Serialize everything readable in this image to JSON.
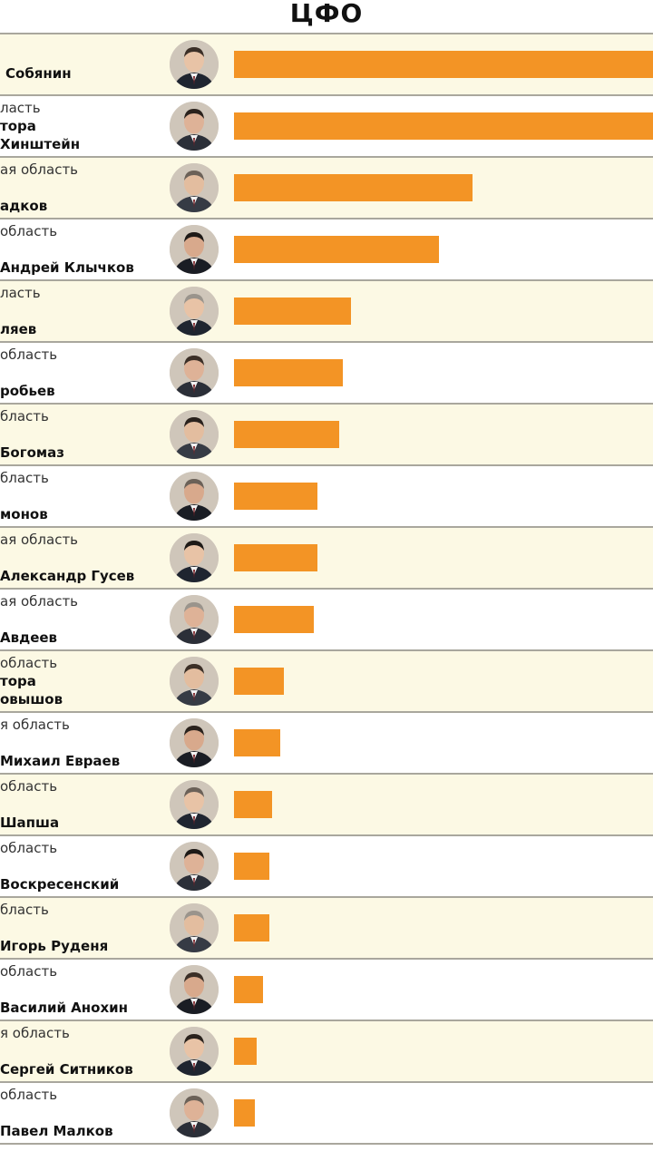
{
  "header": {
    "title": "ЦФО"
  },
  "chart_data": {
    "type": "bar",
    "orientation": "horizontal",
    "xlim": [
      0,
      100
    ],
    "categories": [
      "Собянин",
      "Хинштейн",
      "адков",
      "Андрей Клычков",
      "ляев",
      "робьев",
      "Богомаз",
      "монов",
      "Александр Гусев",
      "Авдеев",
      "овышов",
      "Михаил Евраев",
      "Шапша",
      "Воскресенский",
      "Игорь Руденя",
      "Василий Анохин",
      "Сергей Ситников",
      "Павел Малков"
    ],
    "values": [
      100,
      100,
      57,
      49,
      28,
      26,
      25,
      20,
      20,
      19,
      12,
      11,
      9,
      8.5,
      8.5,
      7,
      5.5,
      5
    ]
  },
  "rows": [
    {
      "region": "",
      "title_line": "",
      "name": "Собянин",
      "value": 100,
      "bar_color": "#f39425",
      "avatar": "face-1"
    },
    {
      "region": "ласть",
      "title_line": "тора",
      "name": "Хинштейн",
      "value": 100,
      "bar_color": "#f39425",
      "avatar": "face-2"
    },
    {
      "region": "ая область",
      "title_line": "",
      "name": "адков",
      "value": 57,
      "bar_color": "#f39425",
      "avatar": "face-3"
    },
    {
      "region": "область",
      "title_line": "",
      "name": "Андрей Клычков",
      "value": 49,
      "bar_color": "#f39425",
      "avatar": "face-4"
    },
    {
      "region": "ласть",
      "title_line": "",
      "name": "ляев",
      "value": 28,
      "bar_color": "#f39425",
      "avatar": "face-5"
    },
    {
      "region": "область",
      "title_line": "",
      "name": "робьев",
      "value": 26,
      "bar_color": "#f39425",
      "avatar": "face-6"
    },
    {
      "region": "бласть",
      "title_line": "",
      "name": "Богомаз",
      "value": 25,
      "bar_color": "#f39425",
      "avatar": "face-7"
    },
    {
      "region": "бласть",
      "title_line": "",
      "name": "монов",
      "value": 20,
      "bar_color": "#f39425",
      "avatar": "face-8"
    },
    {
      "region": "ая область",
      "title_line": "",
      "name": "Александр Гусев",
      "value": 20,
      "bar_color": "#f39425",
      "avatar": "face-9"
    },
    {
      "region": "ая область",
      "title_line": "",
      "name": "Авдеев",
      "value": 19,
      "bar_color": "#f39425",
      "avatar": "face-10"
    },
    {
      "region": "область",
      "title_line": "тора",
      "name": "овышов",
      "value": 12,
      "bar_color": "#f39425",
      "avatar": "face-11"
    },
    {
      "region": "я область",
      "title_line": "",
      "name": "Михаил Евраев",
      "value": 11,
      "bar_color": "#f39425",
      "avatar": "face-12"
    },
    {
      "region": "область",
      "title_line": "",
      "name": "Шапша",
      "value": 9,
      "bar_color": "#f39425",
      "avatar": "face-13"
    },
    {
      "region": "область",
      "title_line": "",
      "name": "Воскресенский",
      "value": 8.5,
      "bar_color": "#f39425",
      "avatar": "face-14"
    },
    {
      "region": "бласть",
      "title_line": "",
      "name": "Игорь Руденя",
      "value": 8.5,
      "bar_color": "#f39425",
      "avatar": "face-15"
    },
    {
      "region": "область",
      "title_line": "",
      "name": "Василий Анохин",
      "value": 7,
      "bar_color": "#f39425",
      "avatar": "face-16"
    },
    {
      "region": "я область",
      "title_line": "",
      "name": "Сергей Ситников",
      "value": 5.5,
      "bar_color": "#f39425",
      "avatar": "face-17"
    },
    {
      "region": "область",
      "title_line": "",
      "name": "Павел Малков",
      "value": 5,
      "bar_color": "#f39425",
      "avatar": "face-18"
    }
  ]
}
